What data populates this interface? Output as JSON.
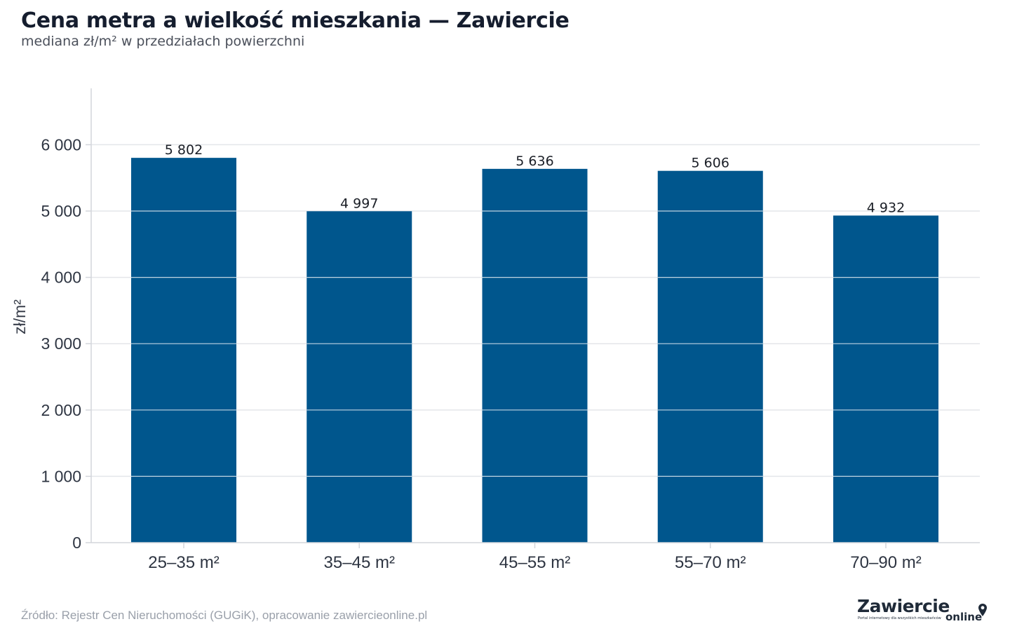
{
  "header": {
    "title": "Cena metra a wielkość mieszkania — Zawiercie",
    "subtitle": "mediana zł/m² w przedziałach powierzchni"
  },
  "footer": {
    "source": "Źródło: Rejestr Cen Nieruchomości (GUGiK), opracowanie zawiercieonline.pl"
  },
  "logo": {
    "name": "Zawiercie",
    "suffix": "online",
    "tagline": "Portal internetowy dla wszystkich mieszkańców",
    "icon": "map-pin-icon"
  },
  "colors": {
    "bar": "#00568d",
    "grid": "#e4e6ea",
    "axis": "#d3d6db",
    "tick_text": "#2e3542",
    "label_text": "#1b1f27"
  },
  "chart_data": {
    "type": "bar",
    "title": "Cena metra a wielkość mieszkania — Zawiercie",
    "subtitle": "mediana zł/m² w przedziałach powierzchni",
    "xlabel": "",
    "ylabel": "zł/m²",
    "categories": [
      "25–35 m²",
      "35–45 m²",
      "45–55 m²",
      "55–70 m²",
      "70–90 m²"
    ],
    "values": [
      5802,
      4997,
      5636,
      5606,
      4932
    ],
    "value_labels": [
      "5 802",
      "4 997",
      "5 636",
      "5 606",
      "4 932"
    ],
    "ylim": [
      0,
      6850
    ],
    "yticks": [
      0,
      1000,
      2000,
      3000,
      4000,
      5000,
      6000
    ],
    "ytick_labels": [
      "0",
      "1 000",
      "2 000",
      "3 000",
      "4 000",
      "5 000",
      "6 000"
    ],
    "grid": true,
    "legend": "none"
  }
}
